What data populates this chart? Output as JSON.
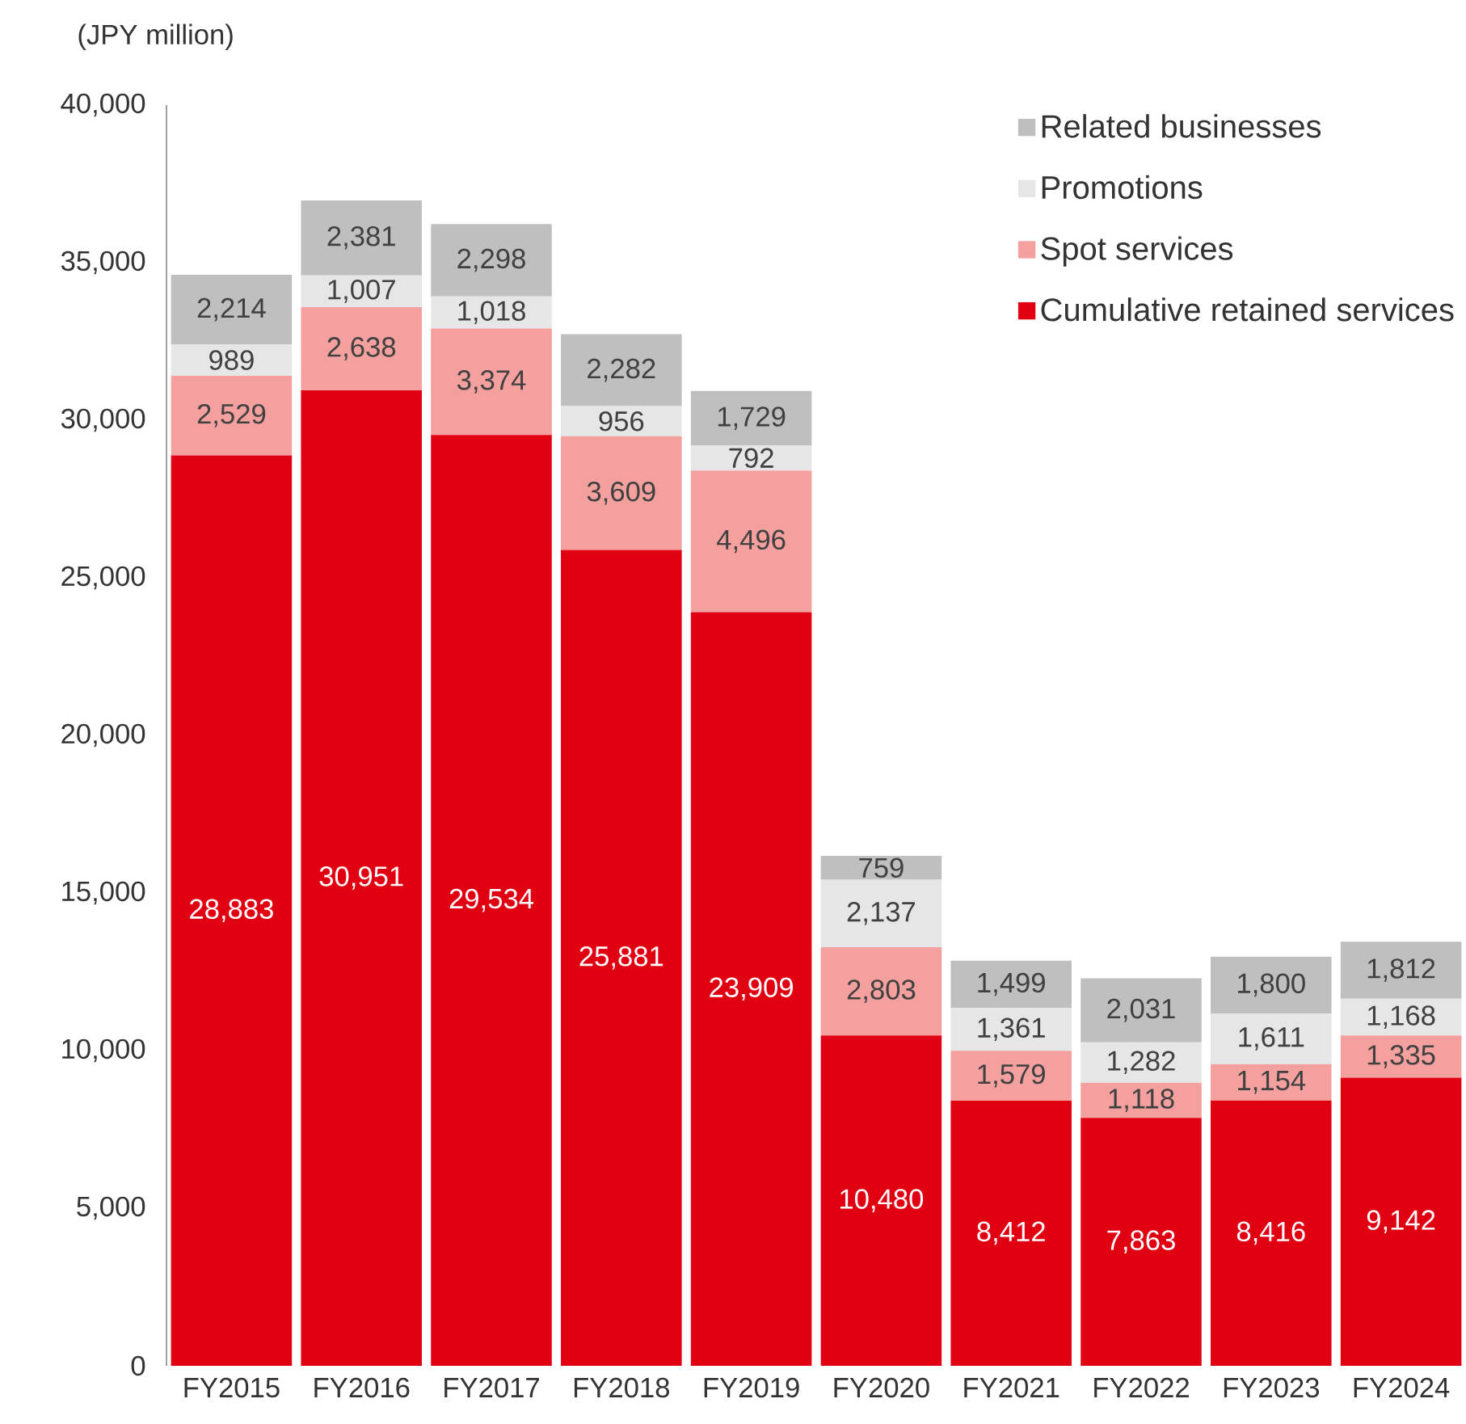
{
  "chart_data": {
    "type": "bar",
    "stacked": true,
    "ylabel": "(JPY million)",
    "categories": [
      "FY2015",
      "FY2016",
      "FY2017",
      "FY2018",
      "FY2019",
      "FY2020",
      "FY2021",
      "FY2022",
      "FY2023",
      "FY2024"
    ],
    "series": [
      {
        "name": "Cumulative retained services",
        "color": "#e00012",
        "values": [
          28883,
          30951,
          29534,
          25881,
          23909,
          10480,
          8412,
          7863,
          8416,
          9142
        ],
        "value_labels": [
          "28,883",
          "30,951",
          "29,534",
          "25,881",
          "23,909",
          "10,480",
          "8,412",
          "7,863",
          "8,416",
          "9,142"
        ]
      },
      {
        "name": "Spot services",
        "color": "#f4a09f",
        "values": [
          2529,
          2638,
          3374,
          3609,
          4496,
          2803,
          1579,
          1118,
          1154,
          1335
        ],
        "value_labels": [
          "2,529",
          "2,638",
          "3,374",
          "3,609",
          "4,496",
          "2,803",
          "1,579",
          "1,118",
          "1,154",
          "1,335"
        ]
      },
      {
        "name": "Promotions",
        "color": "#e6e6e6",
        "values": [
          989,
          1007,
          1018,
          956,
          792,
          2137,
          1361,
          1282,
          1611,
          1168
        ],
        "value_labels": [
          "989",
          "1,007",
          "1,018",
          "956",
          "792",
          "2,137",
          "1,361",
          "1,282",
          "1,611",
          "1,168"
        ]
      },
      {
        "name": "Related businesses",
        "color": "#bfbfbf",
        "values": [
          2214,
          2381,
          2298,
          2282,
          1729,
          759,
          1499,
          2031,
          1800,
          1812
        ],
        "value_labels": [
          "2,214",
          "2,381",
          "2,298",
          "2,282",
          "1,729",
          "759",
          "1,499",
          "2,031",
          "1,800",
          "1,812"
        ]
      }
    ],
    "ylim": [
      0,
      40000
    ],
    "yticks": [
      {
        "value": 0,
        "label": "0"
      },
      {
        "value": 5000,
        "label": "5,000"
      },
      {
        "value": 10000,
        "label": "10,000"
      },
      {
        "value": 15000,
        "label": "15,000"
      },
      {
        "value": 20000,
        "label": "20,000"
      },
      {
        "value": 25000,
        "label": "25,000"
      },
      {
        "value": 30000,
        "label": "30,000"
      },
      {
        "value": 35000,
        "label": "35,000"
      },
      {
        "value": 40000,
        "label": "40,000"
      }
    ],
    "grid": false,
    "legend": "top right"
  }
}
